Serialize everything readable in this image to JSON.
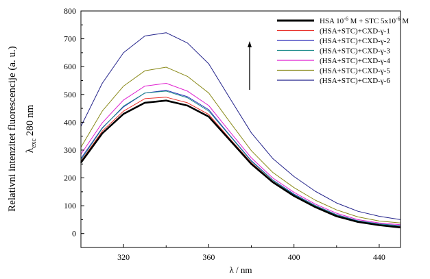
{
  "chart_data": {
    "type": "line",
    "xlabel": "λ / nm",
    "ylabel_line1": "Relativni intenzitet fluorescencije (a. u.)",
    "ylabel_line2_prefix": "λ",
    "ylabel_line2_sub": "exc",
    "ylabel_line2_suffix": " 280 nm",
    "xlim": [
      300,
      450
    ],
    "ylim": [
      -50,
      800
    ],
    "xticks": [
      320,
      360,
      400,
      440
    ],
    "yticks": [
      0,
      100,
      200,
      300,
      400,
      500,
      600,
      700,
      800
    ],
    "grid": false,
    "legend_position": "top-right",
    "arrow_annotation": "up",
    "x": [
      300,
      310,
      320,
      330,
      340,
      350,
      360,
      370,
      380,
      390,
      400,
      410,
      420,
      430,
      440,
      450
    ],
    "series": [
      {
        "name": "HSA 10^-6 M + STC 5x10^-6 M",
        "color": "#000000",
        "width": 2.6,
        "values": [
          255,
          360,
          430,
          470,
          478,
          460,
          420,
          335,
          250,
          185,
          135,
          95,
          62,
          42,
          30,
          22
        ]
      },
      {
        "name": "(HSA+STC)+CXD-γ-1",
        "color": "#e8332d",
        "width": 1,
        "values": [
          260,
          368,
          440,
          485,
          490,
          470,
          428,
          340,
          255,
          188,
          138,
          98,
          65,
          44,
          32,
          25
        ]
      },
      {
        "name": "(HSA+STC)+CXD-γ-2",
        "color": "#2a2ab8",
        "width": 1,
        "values": [
          270,
          380,
          455,
          505,
          515,
          492,
          445,
          352,
          262,
          193,
          142,
          101,
          68,
          46,
          35,
          28
        ]
      },
      {
        "name": "(HSA+STC)+CXD-γ-3",
        "color": "#1a8a8a",
        "width": 1,
        "values": [
          265,
          378,
          458,
          505,
          512,
          488,
          440,
          350,
          260,
          192,
          140,
          100,
          67,
          45,
          34,
          27
        ]
      },
      {
        "name": "(HSA+STC)+CXD-γ-4",
        "color": "#e020d0",
        "width": 1,
        "values": [
          285,
          398,
          480,
          530,
          540,
          512,
          460,
          365,
          272,
          200,
          148,
          106,
          73,
          50,
          38,
          32
        ]
      },
      {
        "name": "(HSA+STC)+CXD-γ-5",
        "color": "#8a8a1a",
        "width": 1,
        "values": [
          310,
          440,
          530,
          585,
          598,
          565,
          505,
          400,
          298,
          220,
          165,
          120,
          85,
          60,
          45,
          38
        ]
      },
      {
        "name": "(HSA+STC)+CXD-γ-6",
        "color": "#22228a",
        "width": 1,
        "values": [
          385,
          540,
          650,
          710,
          722,
          685,
          610,
          485,
          362,
          270,
          205,
          152,
          110,
          80,
          62,
          50
        ]
      }
    ]
  }
}
